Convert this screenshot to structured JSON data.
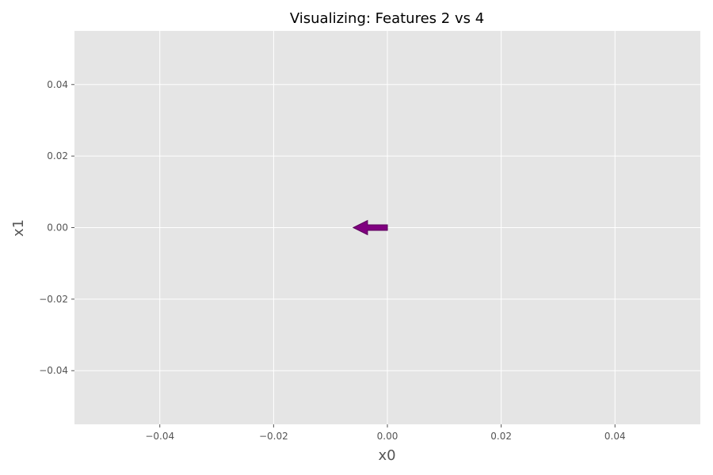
{
  "chart_data": {
    "type": "quiver",
    "title": "Visualizing: Features 2 vs 4",
    "xlabel": "x0",
    "ylabel": "x1",
    "xlim": [
      -0.055,
      0.055
    ],
    "ylim": [
      -0.055,
      0.055
    ],
    "grid": true,
    "xticks": [
      -0.04,
      -0.02,
      0.0,
      0.02,
      0.04
    ],
    "yticks": [
      -0.04,
      -0.02,
      0.0,
      0.02,
      0.04
    ],
    "xtick_labels": [
      "−0.04",
      "−0.02",
      "0.00",
      "0.02",
      "0.04"
    ],
    "ytick_labels": [
      "−0.04",
      "−0.02",
      "0.00",
      "0.02",
      "0.04"
    ],
    "arrows": [
      {
        "x": 0.0,
        "y": 0.0,
        "dx": -0.006,
        "dy": 0.0,
        "color": "#800080"
      }
    ],
    "colors": {
      "plot_background": "#e5e5e5",
      "grid": "#ffffff",
      "arrow": "#800080",
      "arrow_edge": "#5a005a"
    }
  }
}
